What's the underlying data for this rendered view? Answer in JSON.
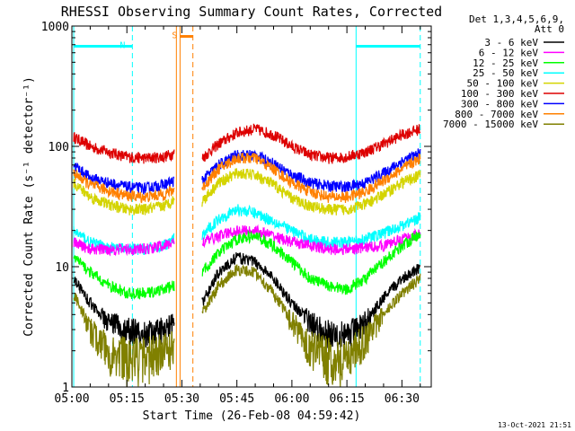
{
  "chart_data": {
    "type": "line",
    "title": "RHESSI Observing Summary Count Rates, Corrected",
    "xlabel": "Start Time (26-Feb-08 04:59:42)",
    "ylabel": "Corrected Count Rate (s⁻¹ detector⁻¹)",
    "yscale": "log",
    "ylim": [
      1,
      1000
    ],
    "xlim_minutes_after_0500": [
      0,
      98
    ],
    "y_ticks": [
      {
        "value": 1,
        "label": "1"
      },
      {
        "value": 10,
        "label": "10"
      },
      {
        "value": 100,
        "label": "100"
      },
      {
        "value": 1000,
        "label": "1000"
      }
    ],
    "x_ticks": [
      {
        "minute": 0,
        "label": "05:00"
      },
      {
        "minute": 15,
        "label": "05:15"
      },
      {
        "minute": 30,
        "label": "05:30"
      },
      {
        "minute": 45,
        "label": "05:45"
      },
      {
        "minute": 60,
        "label": "06:00"
      },
      {
        "minute": 75,
        "label": "06:15"
      },
      {
        "minute": 90,
        "label": "06:30"
      }
    ],
    "legend": {
      "position": "right",
      "header": [
        "Det 1,3,4,5,6,9,",
        "Att 0"
      ],
      "entries": [
        {
          "label": "3 - 6 keV",
          "color": "#000000"
        },
        {
          "label": "6 - 12 keV",
          "color": "#ff00ff"
        },
        {
          "label": "12 - 25 keV",
          "color": "#00ff00"
        },
        {
          "label": "25 - 50 keV",
          "color": "#00ffff"
        },
        {
          "label": "50 - 100 keV",
          "color": "#d4d400"
        },
        {
          "label": "100 - 300 keV",
          "color": "#dd0000"
        },
        {
          "label": "300 - 800 keV",
          "color": "#0000ff"
        },
        {
          "label": "800 - 7000 keV",
          "color": "#ff8000"
        },
        {
          "label": "7000 - 15000 keV",
          "color": "#808000"
        }
      ]
    },
    "segments": [
      {
        "start": 0.5,
        "end": 28.0
      },
      {
        "start": 35.5,
        "end": 95.0
      }
    ],
    "series": [
      {
        "color": "#dd0000",
        "points": [
          [
            0.5,
            120
          ],
          [
            5,
            100
          ],
          [
            10,
            90
          ],
          [
            15,
            82
          ],
          [
            20,
            80
          ],
          [
            25,
            82
          ],
          [
            28,
            88
          ],
          [
            35.5,
            80
          ],
          [
            40,
            105
          ],
          [
            45,
            130
          ],
          [
            50,
            140
          ],
          [
            55,
            125
          ],
          [
            60,
            100
          ],
          [
            65,
            85
          ],
          [
            70,
            80
          ],
          [
            75,
            82
          ],
          [
            80,
            90
          ],
          [
            85,
            105
          ],
          [
            90,
            125
          ],
          [
            95,
            140
          ]
        ]
      },
      {
        "color": "#0000ff",
        "points": [
          [
            0.5,
            70
          ],
          [
            5,
            55
          ],
          [
            10,
            50
          ],
          [
            15,
            46
          ],
          [
            20,
            45
          ],
          [
            25,
            48
          ],
          [
            28,
            52
          ],
          [
            35.5,
            52
          ],
          [
            40,
            70
          ],
          [
            45,
            85
          ],
          [
            50,
            85
          ],
          [
            55,
            72
          ],
          [
            60,
            58
          ],
          [
            65,
            50
          ],
          [
            70,
            47
          ],
          [
            75,
            46
          ],
          [
            80,
            50
          ],
          [
            85,
            60
          ],
          [
            90,
            75
          ],
          [
            95,
            88
          ]
        ]
      },
      {
        "color": "#ff8000",
        "points": [
          [
            0.5,
            60
          ],
          [
            5,
            48
          ],
          [
            10,
            43
          ],
          [
            15,
            39
          ],
          [
            20,
            38
          ],
          [
            25,
            40
          ],
          [
            28,
            44
          ],
          [
            35.5,
            45
          ],
          [
            40,
            65
          ],
          [
            45,
            80
          ],
          [
            50,
            80
          ],
          [
            55,
            65
          ],
          [
            60,
            50
          ],
          [
            65,
            42
          ],
          [
            70,
            38
          ],
          [
            75,
            38
          ],
          [
            80,
            42
          ],
          [
            85,
            52
          ],
          [
            90,
            65
          ],
          [
            95,
            80
          ]
        ]
      },
      {
        "color": "#d4d400",
        "points": [
          [
            0.5,
            50
          ],
          [
            5,
            38
          ],
          [
            10,
            33
          ],
          [
            15,
            30
          ],
          [
            20,
            30
          ],
          [
            25,
            32
          ],
          [
            28,
            36
          ],
          [
            35.5,
            35
          ],
          [
            40,
            50
          ],
          [
            45,
            60
          ],
          [
            50,
            58
          ],
          [
            55,
            48
          ],
          [
            60,
            37
          ],
          [
            65,
            32
          ],
          [
            70,
            30
          ],
          [
            75,
            30
          ],
          [
            80,
            33
          ],
          [
            85,
            40
          ],
          [
            90,
            50
          ],
          [
            95,
            58
          ]
        ]
      },
      {
        "color": "#00ffff",
        "points": [
          [
            0.5,
            20
          ],
          [
            5,
            16
          ],
          [
            10,
            14.5
          ],
          [
            15,
            14
          ],
          [
            20,
            14
          ],
          [
            25,
            15
          ],
          [
            28,
            17
          ],
          [
            35.5,
            18
          ],
          [
            40,
            25
          ],
          [
            45,
            30
          ],
          [
            50,
            28
          ],
          [
            55,
            24
          ],
          [
            60,
            20
          ],
          [
            65,
            17
          ],
          [
            70,
            16
          ],
          [
            75,
            16
          ],
          [
            80,
            17
          ],
          [
            85,
            19
          ],
          [
            90,
            22
          ],
          [
            95,
            26
          ]
        ]
      },
      {
        "color": "#ff00ff",
        "points": [
          [
            0.5,
            16
          ],
          [
            5,
            14
          ],
          [
            10,
            14
          ],
          [
            15,
            14
          ],
          [
            20,
            14
          ],
          [
            25,
            15
          ],
          [
            28,
            16
          ],
          [
            35.5,
            16
          ],
          [
            40,
            18
          ],
          [
            45,
            20
          ],
          [
            50,
            20
          ],
          [
            55,
            18
          ],
          [
            60,
            16
          ],
          [
            65,
            15
          ],
          [
            70,
            14
          ],
          [
            75,
            14
          ],
          [
            80,
            14.5
          ],
          [
            85,
            15
          ],
          [
            90,
            17
          ],
          [
            95,
            19
          ]
        ]
      },
      {
        "color": "#00ff00",
        "points": [
          [
            0.5,
            12
          ],
          [
            5,
            9
          ],
          [
            10,
            7
          ],
          [
            15,
            6
          ],
          [
            20,
            6
          ],
          [
            25,
            6.5
          ],
          [
            28,
            7
          ],
          [
            35.5,
            9
          ],
          [
            40,
            13
          ],
          [
            45,
            17
          ],
          [
            50,
            18
          ],
          [
            55,
            15
          ],
          [
            60,
            11
          ],
          [
            65,
            8
          ],
          [
            70,
            7
          ],
          [
            75,
            6.5
          ],
          [
            80,
            8
          ],
          [
            85,
            11
          ],
          [
            90,
            15
          ],
          [
            95,
            19
          ]
        ]
      },
      {
        "color": "#000000",
        "points": [
          [
            0.5,
            8
          ],
          [
            5,
            5
          ],
          [
            10,
            3.5
          ],
          [
            15,
            3
          ],
          [
            20,
            2.8
          ],
          [
            25,
            3
          ],
          [
            28,
            3.5
          ],
          [
            35.5,
            5
          ],
          [
            40,
            9
          ],
          [
            45,
            12
          ],
          [
            50,
            11
          ],
          [
            55,
            8
          ],
          [
            60,
            5
          ],
          [
            65,
            3.5
          ],
          [
            70,
            2.8
          ],
          [
            75,
            2.8
          ],
          [
            80,
            3.5
          ],
          [
            85,
            5.5
          ],
          [
            90,
            8
          ],
          [
            95,
            10
          ]
        ]
      },
      {
        "color": "#808000",
        "points": [
          [
            0.5,
            6
          ],
          [
            5,
            3
          ],
          [
            10,
            2
          ],
          [
            15,
            1.8
          ],
          [
            20,
            1.8
          ],
          [
            25,
            2
          ],
          [
            28,
            2.2
          ],
          [
            35.5,
            4
          ],
          [
            40,
            7
          ],
          [
            45,
            9.5
          ],
          [
            50,
            9
          ],
          [
            55,
            6
          ],
          [
            60,
            3.5
          ],
          [
            65,
            2.2
          ],
          [
            70,
            1.8
          ],
          [
            75,
            1.8
          ],
          [
            80,
            2.5
          ],
          [
            85,
            4
          ],
          [
            90,
            6
          ],
          [
            95,
            8
          ]
        ]
      }
    ],
    "flag_lines": [
      {
        "label": "N",
        "color": "#00ffff",
        "y_value": 680,
        "start": 0.5,
        "end": 16.5
      },
      {
        "label": "",
        "color": "#00ffff",
        "y_value": 680,
        "start": 77.5,
        "end": 95.0
      },
      {
        "label": "S",
        "color": "#ff8000",
        "y_value": 820,
        "start": 29.5,
        "end": 33.0
      }
    ],
    "markers": [
      {
        "minute": 0.5,
        "color": "#00ffff",
        "style": "solid"
      },
      {
        "minute": 16.5,
        "color": "#00ffff",
        "style": "dashed"
      },
      {
        "minute": 28.5,
        "color": "#ff8000",
        "style": "solid"
      },
      {
        "minute": 29.5,
        "color": "#ff8000",
        "style": "solid"
      },
      {
        "minute": 33.0,
        "color": "#ff8000",
        "style": "dashed"
      },
      {
        "minute": 77.5,
        "color": "#00ffff",
        "style": "solid"
      },
      {
        "minute": 95.0,
        "color": "#00ffff",
        "style": "dashed"
      }
    ],
    "footer_date": "13-Oct-2021 21:51"
  }
}
